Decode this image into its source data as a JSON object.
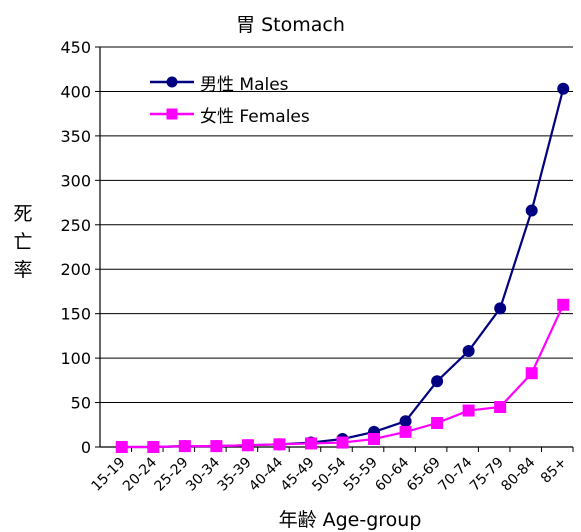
{
  "chart_data": {
    "type": "line",
    "title": "胃 Stomach",
    "xlabel": "年齢 Age-group",
    "ylabel": "死亡率",
    "ylim": [
      0,
      450
    ],
    "yticks": [
      0,
      50,
      100,
      150,
      200,
      250,
      300,
      350,
      400,
      450
    ],
    "grid": "horizontal",
    "legend_position": "top-left",
    "categories": [
      "15-19",
      "20-24",
      "25-29",
      "30-34",
      "35-39",
      "40-44",
      "45-49",
      "50-54",
      "55-59",
      "60-64",
      "65-69",
      "70-74",
      "75-79",
      "80-84",
      "85+"
    ],
    "series": [
      {
        "name": "男性 Males",
        "color": "#000080",
        "marker": "circle",
        "values": [
          0,
          0,
          1,
          1,
          2,
          3,
          5,
          9,
          17,
          29,
          74,
          108,
          156,
          266,
          403
        ]
      },
      {
        "name": "女性 Females",
        "color": "#FF00FF",
        "marker": "square",
        "values": [
          0,
          0,
          1,
          1,
          2,
          3,
          4,
          5,
          9,
          17,
          27,
          41,
          45,
          83,
          160
        ]
      }
    ]
  }
}
